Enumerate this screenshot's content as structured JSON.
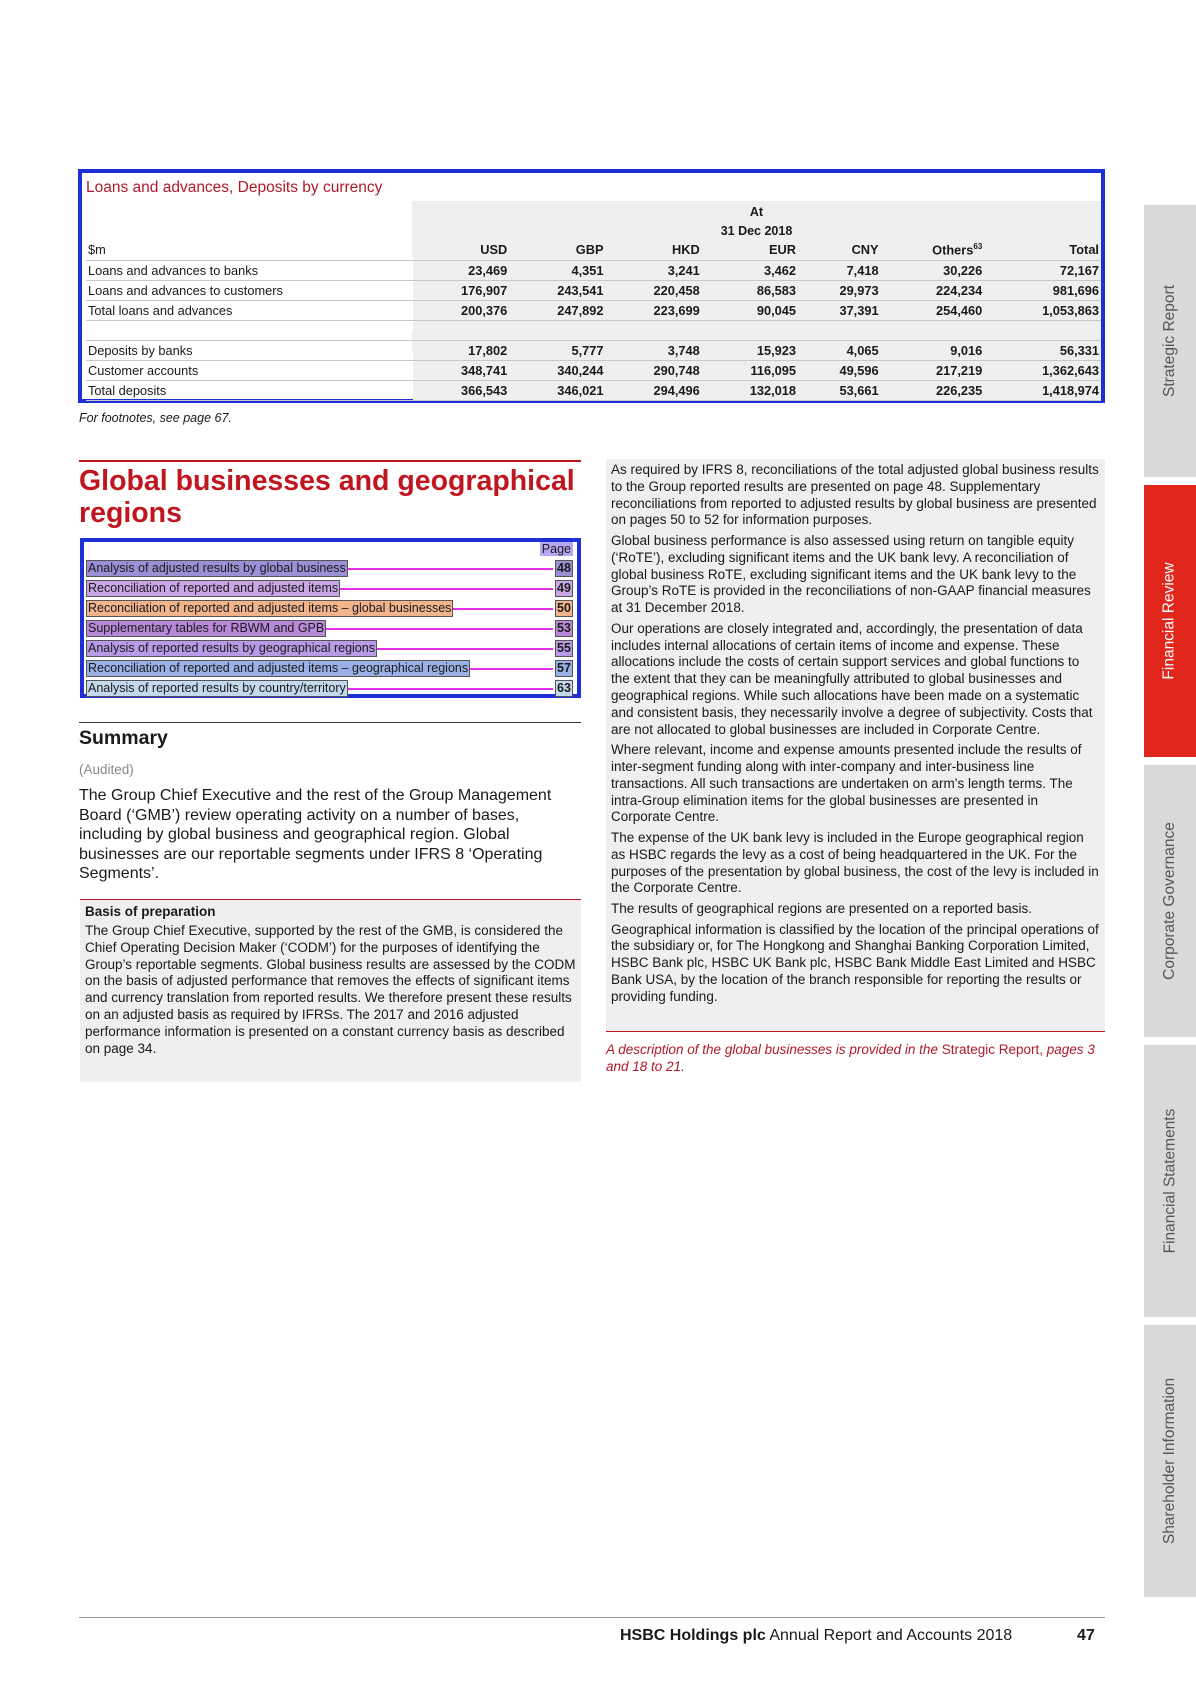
{
  "table": {
    "title": "Loans and advances, Deposits by currency",
    "at_label": "At",
    "date_label": "31 Dec 2018",
    "unit_label": "$m",
    "columns": [
      "USD",
      "GBP",
      "HKD",
      "EUR",
      "CNY",
      "Others",
      "Total"
    ],
    "others_footnote": "63",
    "rows_loans": [
      {
        "label": "Loans and advances to banks",
        "values": [
          "23,469",
          "4,351",
          "3,241",
          "3,462",
          "7,418",
          "30,226",
          "72,167"
        ]
      },
      {
        "label": "Loans and advances to customers",
        "values": [
          "176,907",
          "243,541",
          "220,458",
          "86,583",
          "29,973",
          "224,234",
          "981,696"
        ]
      },
      {
        "label": "Total loans and advances",
        "values": [
          "200,376",
          "247,892",
          "223,699",
          "90,045",
          "37,391",
          "254,460",
          "1,053,863"
        ]
      }
    ],
    "rows_deposits": [
      {
        "label": "Deposits by banks",
        "values": [
          "17,802",
          "5,777",
          "3,748",
          "15,923",
          "4,065",
          "9,016",
          "56,331"
        ]
      },
      {
        "label": "Customer accounts",
        "values": [
          "348,741",
          "340,244",
          "290,748",
          "116,095",
          "49,596",
          "217,219",
          "1,362,643"
        ]
      },
      {
        "label": "Total deposits",
        "values": [
          "366,543",
          "346,021",
          "294,496",
          "132,018",
          "53,661",
          "226,235",
          "1,418,974"
        ]
      }
    ],
    "footnote": "For footnotes, see page 67."
  },
  "heading": "Global businesses and geographical regions",
  "toc": {
    "page_label": "Page",
    "items": [
      {
        "label": "Analysis of adjusted results by global business",
        "page": "48",
        "color": "#9b8fd6"
      },
      {
        "label": "Reconciliation of reported and adjusted items",
        "page": "49",
        "color": "#c9a6e6"
      },
      {
        "label": "Reconciliation of reported and adjusted items – global businesses",
        "page": "50",
        "color": "#f2b48c"
      },
      {
        "label": "Supplementary tables for RBWM and GPB",
        "page": "53",
        "color": "#b889d9"
      },
      {
        "label": "Analysis of reported results by geographical regions",
        "page": "55",
        "color": "#b89ae6"
      },
      {
        "label": "Reconciliation of reported and adjusted items – geographical regions",
        "page": "57",
        "color": "#9ab0e6"
      },
      {
        "label": "Analysis of reported results by country/territory",
        "page": "63",
        "color": "#c4d8ee"
      }
    ]
  },
  "summary": {
    "heading": "Summary",
    "audited": "(Audited)",
    "text": "The Group Chief Executive and the rest of the Group Management Board (‘GMB’) review operating activity on a number of bases, including by global business and geographical region. Global businesses are our reportable segments under IFRS 8 ‘Operating Segments’."
  },
  "basis": {
    "heading": "Basis of preparation",
    "text": "The Group Chief Executive, supported by the rest of the GMB, is considered the Chief Operating Decision Maker (‘CODM’) for the purposes of identifying the Group’s reportable segments. Global business results are assessed by the CODM on the basis of adjusted performance that removes the effects of significant items and currency translation from reported results. We therefore present these results on an adjusted basis as required by IFRSs. The 2017 and 2016 adjusted performance information is presented on a constant currency basis as described on page 34."
  },
  "right_column": {
    "paragraphs": [
      "As required by IFRS 8, reconciliations of the total adjusted global business results to the Group reported results are presented on page 48. Supplementary reconciliations from reported to adjusted results by global business are presented on pages 50 to 52 for information purposes.",
      "Global business performance is also assessed using return on tangible equity (‘RoTE’), excluding significant items and the UK bank levy. A reconciliation of global business RoTE, excluding significant items and the UK bank levy to the Group’s RoTE is provided in the reconciliations of non-GAAP financial measures at 31 December 2018.",
      "Our operations are closely integrated and, accordingly, the presentation of data includes internal allocations of certain items of income and expense. These allocations include the costs of certain support services and global functions to the extent that they can be meaningfully attributed to global businesses and geographical regions. While such allocations have been made on a systematic and consistent basis, they necessarily involve a degree of subjectivity. Costs that are not allocated to global businesses are included in Corporate Centre.",
      "Where relevant, income and expense amounts presented include the results of inter-segment funding along with inter-company and inter-business line transactions. All such transactions are undertaken on arm’s length terms. The intra-Group elimination items for the global businesses are presented in Corporate Centre.",
      "The expense of the UK bank levy is included in the Europe geographical region as HSBC regards the levy as a cost of being headquartered in the UK. For the purposes of the presentation by global business, the cost of the levy is included in the Corporate Centre.",
      "The results of geographical regions are presented on a reported basis.",
      "Geographical information is classified by the location of the principal operations of the subsidiary or, for The Hongkong and Shanghai Banking Corporation Limited, HSBC Bank plc, HSBC UK Bank plc, HSBC Bank Middle East Limited and HSBC Bank USA, by the location of the branch responsible for reporting the results or providing funding."
    ],
    "note_prefix": "A description of the global businesses is provided in the ",
    "note_link": "Strategic Report,",
    "note_suffix": " pages 3 and 18 to 21."
  },
  "side_tabs": [
    "Strategic Report",
    "Financial Review",
    "Corporate Governance",
    "Financial Statements",
    "Shareholder Information"
  ],
  "active_tab": "Financial Review",
  "footer": {
    "company": "HSBC Holdings plc",
    "report": " Annual Report and Accounts 2018",
    "page_number": "47"
  }
}
